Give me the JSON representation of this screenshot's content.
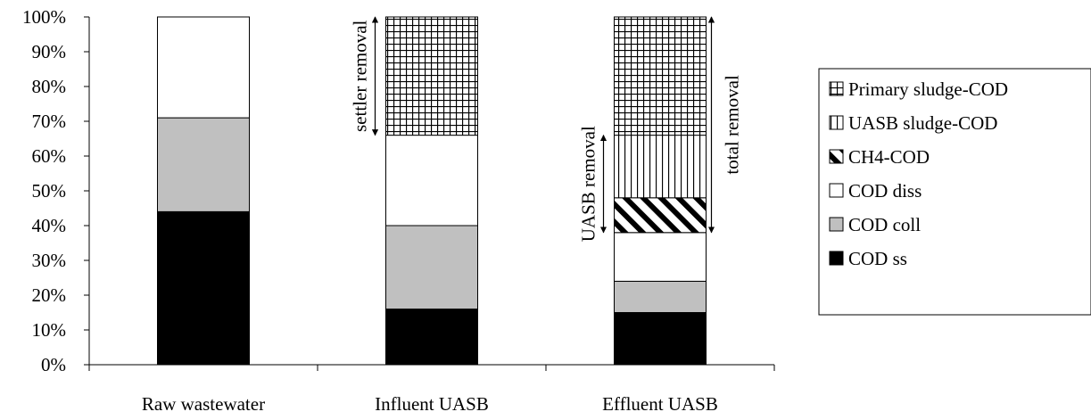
{
  "chart_data": {
    "type": "bar",
    "stacked": true,
    "normalized": true,
    "categories": [
      "Raw wastewater",
      "Influent UASB",
      "Effluent UASB"
    ],
    "ylim": [
      0,
      100
    ],
    "yticks": [
      "0%",
      "10%",
      "20%",
      "30%",
      "40%",
      "50%",
      "60%",
      "70%",
      "80%",
      "90%",
      "100%"
    ],
    "grid": false,
    "legend_position": "right",
    "series": [
      {
        "name": "COD ss",
        "values": [
          44,
          16,
          15
        ],
        "pattern": "solid-black"
      },
      {
        "name": "COD coll",
        "values": [
          27,
          24,
          9
        ],
        "pattern": "solid-gray"
      },
      {
        "name": "COD diss",
        "values": [
          29,
          26,
          14
        ],
        "pattern": "white"
      },
      {
        "name": "CH4-COD",
        "values": [
          0,
          0,
          10
        ],
        "pattern": "diagonal"
      },
      {
        "name": "UASB sludge-COD",
        "values": [
          0,
          0,
          18
        ],
        "pattern": "vertical"
      },
      {
        "name": "Primary sludge-COD",
        "values": [
          0,
          34,
          34
        ],
        "pattern": "crosshatch"
      }
    ],
    "legend_order": [
      "Primary sludge-COD",
      "UASB sludge-COD",
      "CH4-COD",
      "COD diss",
      "COD coll",
      "COD ss"
    ],
    "annotations": [
      {
        "text": "settler removal",
        "category": 1,
        "side": "left",
        "from": 66,
        "to": 100
      },
      {
        "text": "UASB removal",
        "category": 2,
        "side": "left",
        "from": 38,
        "to": 66
      },
      {
        "text": "total removal",
        "category": 2,
        "side": "right",
        "from": 38,
        "to": 100
      }
    ]
  }
}
